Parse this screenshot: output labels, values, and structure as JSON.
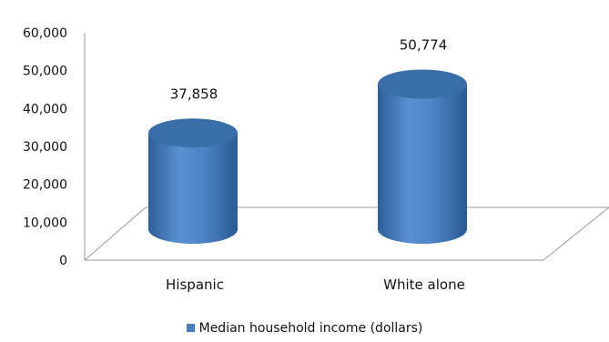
{
  "chart_data": {
    "type": "bar",
    "style": "3d-cylinder",
    "categories": [
      "Hispanic",
      "White alone"
    ],
    "series": [
      {
        "name": "Median household income (dollars)",
        "values": [
          37858,
          50774
        ]
      }
    ],
    "data_labels": [
      "37,858",
      "50,774"
    ],
    "ylim": [
      0,
      60000
    ],
    "yticks": [
      0,
      10000,
      20000,
      30000,
      40000,
      50000,
      60000
    ],
    "ytick_labels": [
      "0",
      "10,000",
      "20,000",
      "30,000",
      "40,000",
      "50,000",
      "60,000"
    ],
    "grid": false,
    "legend_position": "bottom",
    "colors": {
      "bar": "#4a7ebb",
      "bar_top": "#3a6ea8",
      "floor_line": "#9a9a9a"
    }
  }
}
